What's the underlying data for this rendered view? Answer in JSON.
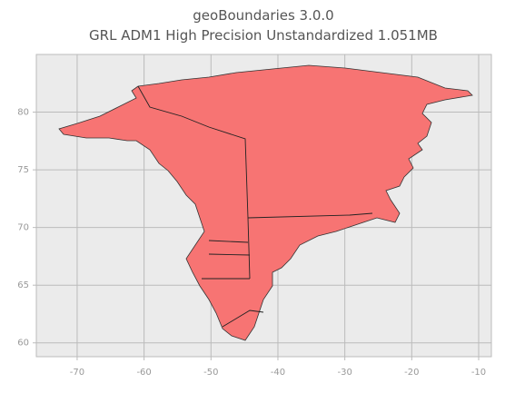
{
  "chart_data": {
    "type": "map",
    "title": "geoBoundaries 3.0.0",
    "subtitle": "GRL ADM1 High Precision Unstandardized 1.051MB",
    "color": "#f77473",
    "xlim": [
      -76.1,
      -8.1
    ],
    "xticks": [
      -70,
      -60,
      -50,
      -40,
      -30,
      -20,
      -10
    ],
    "ylim": [
      58.8,
      85
    ],
    "yticks": [
      60,
      65,
      70,
      75,
      80
    ],
    "grid": true
  }
}
